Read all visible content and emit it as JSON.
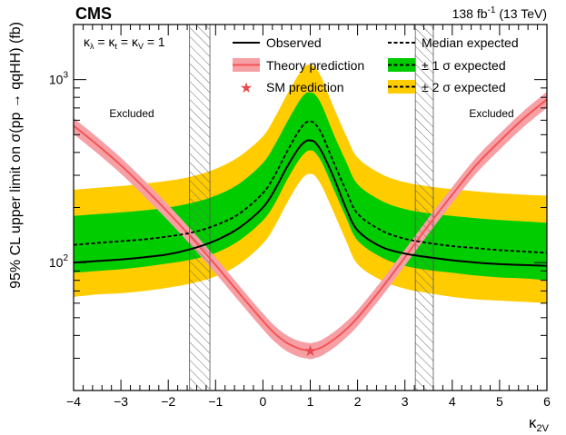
{
  "header": {
    "experiment": "CMS",
    "lumi_value": "138 fb",
    "lumi_exp": "-1",
    "lumi_energy": " (13 TeV)"
  },
  "chart_data": {
    "type": "line",
    "yscale": "log",
    "xlim": [
      -4,
      6
    ],
    "ylim": [
      20,
      2000
    ],
    "xlabel_main": "κ",
    "xlabel_sub": "2V",
    "ylabel": "95% CL upper limit on σ(pp → qqHH) (fb)",
    "x_ticks": [
      -4,
      -3,
      -2,
      -1,
      0,
      1,
      2,
      3,
      4,
      5,
      6
    ],
    "x_tick_labels": [
      "−4",
      "−3",
      "−2",
      "−1",
      "0",
      "1",
      "2",
      "3",
      "4",
      "5",
      "6"
    ],
    "y_ticks_major": [
      100,
      1000
    ],
    "y_tick_labels": [
      {
        "value": 100,
        "base": "10",
        "exp": "2"
      },
      {
        "value": 1000,
        "base": "10",
        "exp": "3"
      }
    ],
    "condition_label": "κλ = κt = κV = 1",
    "regions": [
      {
        "label": "Excluded",
        "side": "left",
        "x_range": [
          -4,
          -1.4
        ]
      },
      {
        "label": "Excluded",
        "side": "right",
        "x_range": [
          3.4,
          6
        ]
      }
    ],
    "exclusion_hatch_bands": [
      {
        "side": "left",
        "x_from": -1.55,
        "x_to": -1.12
      },
      {
        "side": "right",
        "x_from": 3.22,
        "x_to": 3.6
      }
    ],
    "x": [
      -4,
      -3.5,
      -3,
      -2.5,
      -2,
      -1.5,
      -1,
      -0.5,
      0,
      0.25,
      0.5,
      0.75,
      0.9,
      1,
      1.1,
      1.25,
      1.5,
      1.75,
      2,
      2.5,
      3,
      3.5,
      4,
      4.5,
      5,
      5.5,
      6
    ],
    "series": [
      {
        "name": "Observed",
        "legend_label": "Observed",
        "style": "solid",
        "values": [
          100,
          102,
          104,
          107,
          111,
          119,
          132,
          155,
          200,
          250,
          330,
          420,
          460,
          465,
          455,
          400,
          290,
          200,
          150,
          122,
          112,
          107,
          103,
          100,
          98,
          97,
          96
        ]
      },
      {
        "name": "Median expected",
        "legend_label": "Median expected",
        "style": "dashed",
        "values": [
          125,
          128,
          131,
          134,
          139,
          146,
          160,
          185,
          240,
          300,
          400,
          520,
          580,
          590,
          575,
          500,
          350,
          250,
          185,
          150,
          135,
          128,
          123,
          120,
          117,
          115,
          113
        ]
      },
      {
        "name": "1 sigma expected band",
        "legend_label": "± 1 σ expected",
        "type": "band",
        "lower": [
          88,
          90,
          92,
          95,
          99,
          104,
          113,
          132,
          170,
          210,
          280,
          360,
          400,
          410,
          400,
          350,
          250,
          178,
          132,
          107,
          96,
          91,
          88,
          85,
          83,
          82,
          80
        ],
        "upper": [
          180,
          184,
          188,
          193,
          200,
          212,
          232,
          270,
          350,
          440,
          580,
          750,
          840,
          850,
          830,
          720,
          500,
          360,
          268,
          218,
          196,
          186,
          180,
          175,
          171,
          168,
          165
        ]
      },
      {
        "name": "2 sigma expected band",
        "legend_label": "± 2 σ expected",
        "type": "band",
        "lower": [
          65,
          67,
          68,
          70,
          73,
          77,
          84,
          98,
          127,
          158,
          210,
          270,
          300,
          305,
          298,
          260,
          187,
          133,
          98,
          80,
          72,
          68,
          65,
          63,
          62,
          61,
          60
        ],
        "upper": [
          250,
          256,
          262,
          270,
          280,
          296,
          325,
          380,
          490,
          620,
          820,
          1060,
          1190,
          1200,
          1170,
          1010,
          700,
          500,
          375,
          305,
          275,
          261,
          252,
          245,
          239,
          235,
          232
        ]
      },
      {
        "name": "Theory prediction",
        "legend_label": "Theory prediction",
        "type": "line_with_band",
        "values": [
          560,
          440,
          340,
          255,
          188,
          136,
          97,
          68,
          48,
          41,
          36.5,
          34,
          33.3,
          33,
          33.4,
          34.5,
          38,
          43,
          50,
          72,
          107,
          160,
          235,
          340,
          460,
          610,
          780
        ],
        "band_rel": 0.1
      }
    ],
    "sm_prediction": {
      "label": "SM prediction",
      "x": 1,
      "y": 33
    },
    "legend": {
      "position": "top",
      "columns": 2
    },
    "colors": {
      "observed": "#000000",
      "expected": "#000000",
      "band_1sigma": "#00cc00",
      "band_2sigma": "#ffcc00",
      "theory_line": "#f45454",
      "theory_band": "#f6a0a6",
      "sm_star": "#e84a4f",
      "hatch": "#555555"
    }
  }
}
